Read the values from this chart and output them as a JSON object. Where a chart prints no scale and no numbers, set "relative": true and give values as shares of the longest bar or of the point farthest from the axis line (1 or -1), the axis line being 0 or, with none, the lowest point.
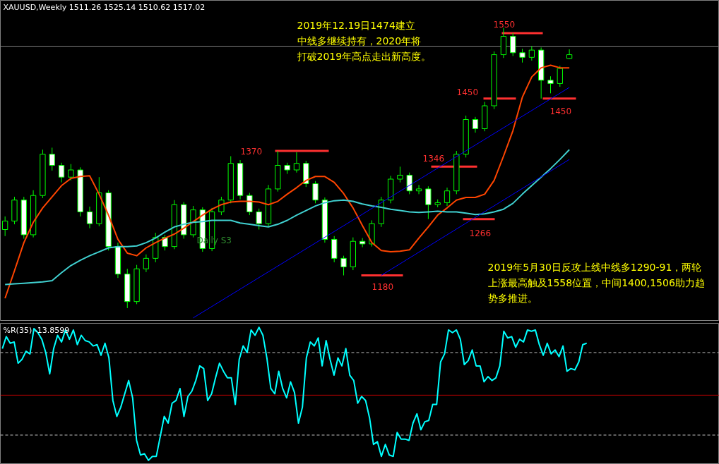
{
  "chart_data": [
    {
      "type": "candlestick",
      "title": "XAUUSD,Weekly 1511.26 1525.14 1510.62 1517.02",
      "color": "#00ff00",
      "categories": [
        null,
        null,
        null,
        null,
        null,
        null,
        null,
        null,
        null,
        null,
        null,
        null,
        null,
        null,
        null,
        null,
        null,
        null,
        null,
        null,
        null,
        null,
        null,
        null,
        null,
        null,
        null,
        null,
        null,
        null,
        null,
        null,
        null,
        null,
        null,
        null,
        null,
        null,
        null,
        null,
        null,
        null,
        null,
        null,
        null,
        null,
        null,
        null,
        null,
        null,
        null,
        null,
        null,
        null,
        null,
        null,
        null,
        null,
        null,
        null,
        null
      ],
      "ohlc": [
        [
          1250,
          1270,
          1240,
          1263
        ],
        [
          1263,
          1300,
          1258,
          1295
        ],
        [
          1295,
          1300,
          1236,
          1242
        ],
        [
          1242,
          1310,
          1238,
          1302
        ],
        [
          1302,
          1372,
          1298,
          1365
        ],
        [
          1365,
          1375,
          1340,
          1348
        ],
        [
          1348,
          1352,
          1322,
          1330
        ],
        [
          1330,
          1350,
          1325,
          1341
        ],
        [
          1341,
          1345,
          1270,
          1277
        ],
        [
          1277,
          1285,
          1252,
          1259
        ],
        [
          1259,
          1330,
          1255,
          1306
        ],
        [
          1306,
          1310,
          1218,
          1224
        ],
        [
          1224,
          1230,
          1176,
          1182
        ],
        [
          1182,
          1190,
          1130,
          1140
        ],
        [
          1140,
          1196,
          1136,
          1190
        ],
        [
          1190,
          1212,
          1185,
          1206
        ],
        [
          1206,
          1245,
          1200,
          1238
        ],
        [
          1238,
          1242,
          1218,
          1224
        ],
        [
          1224,
          1295,
          1220,
          1288
        ],
        [
          1288,
          1292,
          1236,
          1242
        ],
        [
          1242,
          1286,
          1238,
          1280
        ],
        [
          1280,
          1284,
          1216,
          1221
        ],
        [
          1221,
          1283,
          1217,
          1277
        ],
        [
          1277,
          1300,
          1272,
          1295
        ],
        [
          1295,
          1362,
          1290,
          1351
        ],
        [
          1351,
          1356,
          1296,
          1302
        ],
        [
          1302,
          1306,
          1272,
          1277
        ],
        [
          1277,
          1282,
          1250,
          1259
        ],
        [
          1259,
          1318,
          1255,
          1312
        ],
        [
          1312,
          1370,
          1308,
          1348
        ],
        [
          1348,
          1352,
          1335,
          1341
        ],
        [
          1341,
          1368,
          1337,
          1351
        ],
        [
          1351,
          1355,
          1315,
          1320
        ],
        [
          1320,
          1324,
          1290,
          1295
        ],
        [
          1295,
          1299,
          1230,
          1235
        ],
        [
          1235,
          1240,
          1200,
          1206
        ],
        [
          1206,
          1210,
          1180,
          1193
        ],
        [
          1193,
          1238,
          1188,
          1232
        ],
        [
          1232,
          1237,
          1223,
          1228
        ],
        [
          1228,
          1264,
          1224,
          1259
        ],
        [
          1259,
          1300,
          1254,
          1295
        ],
        [
          1295,
          1332,
          1290,
          1327
        ],
        [
          1327,
          1346,
          1322,
          1333
        ],
        [
          1333,
          1337,
          1304,
          1309
        ],
        [
          1309,
          1318,
          1304,
          1312
        ],
        [
          1312,
          1316,
          1266,
          1288
        ],
        [
          1288,
          1296,
          1284,
          1291
        ],
        [
          1291,
          1314,
          1286,
          1309
        ],
        [
          1309,
          1370,
          1304,
          1365
        ],
        [
          1365,
          1424,
          1360,
          1418
        ],
        [
          1418,
          1422,
          1398,
          1404
        ],
        [
          1404,
          1445,
          1400,
          1439
        ],
        [
          1439,
          1522,
          1434,
          1517
        ],
        [
          1517,
          1558,
          1512,
          1545
        ],
        [
          1545,
          1550,
          1515,
          1520
        ],
        [
          1520,
          1526,
          1505,
          1513
        ],
        [
          1513,
          1530,
          1508,
          1524
        ],
        [
          1524,
          1528,
          1450,
          1478
        ],
        [
          1478,
          1484,
          1458,
          1473
        ],
        [
          1473,
          1500,
          1468,
          1496
        ],
        [
          1511.26,
          1525.14,
          1510.62,
          1517.02
        ]
      ],
      "series": [
        {
          "type": "line",
          "color": "#ff4500",
          "values": [
            1145,
            1187,
            1230,
            1261,
            1283,
            1300,
            1317,
            1328,
            1331,
            1332,
            1304,
            1272,
            1235,
            1214,
            1210,
            1222,
            1230,
            1237,
            1243,
            1252,
            1262,
            1272,
            1281,
            1288,
            1292,
            1293,
            1293,
            1292,
            1288,
            1293,
            1304,
            1314,
            1325,
            1331,
            1331,
            1322,
            1305,
            1283,
            1256,
            1230,
            1218,
            1216,
            1217,
            1219,
            1237,
            1254,
            1272,
            1283,
            1295,
            1299,
            1299,
            1304,
            1325,
            1362,
            1401,
            1452,
            1483,
            1497,
            1501,
            1497,
            1497
          ]
        },
        {
          "type": "line",
          "color": "#40d0d0",
          "values": [
            1166,
            1167,
            1168,
            1169,
            1170,
            1172,
            1184,
            1195,
            1203,
            1210,
            1216,
            1222,
            1224,
            1224,
            1225,
            1230,
            1237,
            1246,
            1254,
            1258,
            1261,
            1262,
            1264,
            1264,
            1264,
            1260,
            1258,
            1256,
            1254,
            1258,
            1264,
            1272,
            1279,
            1286,
            1291,
            1294,
            1295,
            1293,
            1289,
            1286,
            1284,
            1281,
            1279,
            1277,
            1276,
            1277,
            1278,
            1277,
            1277,
            1275,
            1273,
            1274,
            1277,
            1281,
            1290,
            1304,
            1317,
            1330,
            1343,
            1357,
            1372
          ]
        },
        {
          "type": "line",
          "color": "#0000ff",
          "values": [
            null,
            null,
            null,
            null,
            null,
            null,
            null,
            null,
            null,
            null,
            null,
            null,
            null,
            null,
            null,
            null,
            null,
            null,
            null,
            null,
            1115,
            null,
            null,
            null,
            null,
            null,
            null,
            null,
            null,
            null,
            null,
            null,
            null,
            null,
            null,
            null,
            null,
            null,
            null,
            null,
            null,
            null,
            null,
            null,
            null,
            null,
            null,
            null,
            null,
            null,
            null,
            null,
            null,
            null,
            null,
            null,
            null,
            null,
            null,
            null,
            1467
          ]
        },
        {
          "type": "line",
          "color": "#0000ff",
          "values": [
            null,
            null,
            null,
            null,
            null,
            null,
            null,
            null,
            null,
            null,
            null,
            null,
            null,
            null,
            null,
            null,
            null,
            null,
            null,
            null,
            null,
            null,
            null,
            null,
            null,
            null,
            null,
            null,
            null,
            null,
            null,
            null,
            null,
            null,
            null,
            null,
            null,
            null,
            null,
            null,
            1180,
            null,
            null,
            null,
            null,
            null,
            null,
            null,
            null,
            null,
            null,
            null,
            null,
            null,
            null,
            null,
            null,
            null,
            null,
            null,
            1357
          ]
        }
      ],
      "ylim": [
        1110,
        1600
      ],
      "tick_labels": false,
      "grid": false,
      "ref_lines": [
        {
          "axis": "y",
          "value": 1530,
          "color": "#808080",
          "line_style": "solid"
        },
        {
          "axis": "y",
          "value": 1370,
          "label": "1370",
          "color": "#ff3030"
        },
        {
          "axis": "y",
          "value": 1346,
          "label": "1346",
          "color": "#ff3030"
        },
        {
          "axis": "y",
          "value": 1266,
          "label": "1266",
          "color": "#ff3030"
        },
        {
          "axis": "y",
          "value": 1180,
          "label": "1180",
          "color": "#ff3030"
        },
        {
          "axis": "y",
          "value": 1450,
          "label": "1450",
          "color": "#ff3030"
        },
        {
          "axis": "y",
          "value": 1550,
          "label": "1550",
          "color": "#ff3030"
        },
        {
          "axis": "y",
          "value": 1450,
          "label": "1450",
          "color": "#ff3030"
        }
      ],
      "annotations": [
        "2019年12.19日1474建立中线多继续持有，2020年将打破2019年高点走出新高度。",
        "Daily S3",
        "2019年5月30日反攻上线中线多1290-91，两轮上涨最高触及1558位置，中间1400,1506助力趋势多推进。"
      ]
    },
    {
      "type": "line",
      "title": "%R(35) -13.8599",
      "relative": true,
      "tick_labels": false,
      "grid": false,
      "categories": [
        null,
        null,
        null,
        null,
        null,
        null,
        null,
        null,
        null,
        null,
        null,
        null,
        null,
        null,
        null,
        null,
        null,
        null,
        null,
        null,
        null,
        null,
        null,
        null,
        null,
        null,
        null,
        null,
        null,
        null,
        null,
        null,
        null,
        null,
        null,
        null,
        null,
        null,
        null,
        null,
        null,
        null,
        null,
        null,
        null,
        null,
        null,
        null,
        null,
        null,
        null,
        null,
        null,
        null,
        null,
        null,
        null,
        null,
        null,
        null,
        null,
        null,
        null,
        null,
        null,
        null,
        null,
        null,
        null,
        null,
        null,
        null,
        null,
        null,
        null,
        null,
        null,
        null,
        null,
        null,
        null,
        null,
        null,
        null,
        null,
        null,
        null,
        null,
        null,
        null,
        null,
        null,
        null,
        null,
        null,
        null,
        null,
        null,
        null,
        null,
        null,
        null,
        null,
        null,
        null,
        null,
        null,
        null,
        null,
        null,
        null,
        null,
        null,
        null,
        null,
        null,
        null,
        null,
        null,
        null,
        null,
        null,
        null,
        null,
        null,
        null,
        null,
        null,
        null,
        null,
        null,
        null,
        null,
        null,
        null,
        null,
        null,
        null,
        null,
        null,
        null,
        null,
        null,
        null,
        null,
        null,
        null,
        null,
        null
      ],
      "series": [
        {
          "color": "#00ffff",
          "values": [
            0.84,
            0.93,
            0.88,
            0.89,
            0.73,
            0.76,
            0.82,
            0.8,
            0.99,
            0.96,
            0.91,
            0.81,
            0.65,
            0.84,
            0.94,
            0.89,
            0.98,
            0.91,
            0.98,
            0.87,
            0.94,
            0.9,
            0.89,
            0.86,
            0.87,
            0.79,
            0.88,
            0.77,
            0.45,
            0.33,
            0.4,
            0.5,
            0.6,
            0.47,
            0.15,
            0.04,
            0.05,
            0,
            0.03,
            0.03,
            0.18,
            0.33,
            0.28,
            0.43,
            0.45,
            0.54,
            0.33,
            0.48,
            0.52,
            0.6,
            0.71,
            0.69,
            0.45,
            0.5,
            0.62,
            0.73,
            0.67,
            0.62,
            0.62,
            0.42,
            0.76,
            0.86,
            0.81,
            0.98,
            0.94,
            1,
            0.94,
            0.77,
            0.54,
            0.5,
            0.67,
            0.54,
            0.47,
            0.59,
            0.51,
            0.28,
            0.4,
            0.77,
            0.89,
            0.86,
            0.92,
            0.71,
            0.9,
            0.76,
            0.64,
            0.77,
            0.71,
            0.84,
            0.64,
            0.6,
            0.43,
            0.48,
            0.45,
            0.32,
            0.12,
            0.14,
            0.03,
            0.12,
            0.04,
            0.03,
            0.21,
            0.16,
            0.16,
            0.15,
            0.28,
            0.35,
            0.23,
            0.29,
            0.3,
            0.42,
            0.42,
            0.74,
            0.8,
            0.98,
            0.96,
            0.98,
            0.91,
            0.72,
            0.75,
            0.83,
            0.71,
            0.71,
            0.59,
            0.63,
            0.6,
            0.62,
            0.71,
            0.97,
            0.92,
            0.93,
            0.85,
            0.91,
            0.89,
            0.98,
            0.97,
            0.98,
            0.87,
            0.79,
            0.88,
            0.8,
            0.83,
            0.78,
            0.86,
            0.67,
            0.69,
            0.68,
            0.74,
            0.87,
            0.88
          ]
        }
      ],
      "ref_lines": [
        {
          "axis": "y",
          "value": 0.81,
          "color": "#c0c0c0",
          "line_style": "dashed"
        },
        {
          "axis": "y",
          "value": 0.49,
          "color": "#c00000",
          "line_style": "solid"
        },
        {
          "axis": "y",
          "value": 0.19,
          "color": "#c0c0c0",
          "line_style": "dashed"
        }
      ]
    }
  ]
}
